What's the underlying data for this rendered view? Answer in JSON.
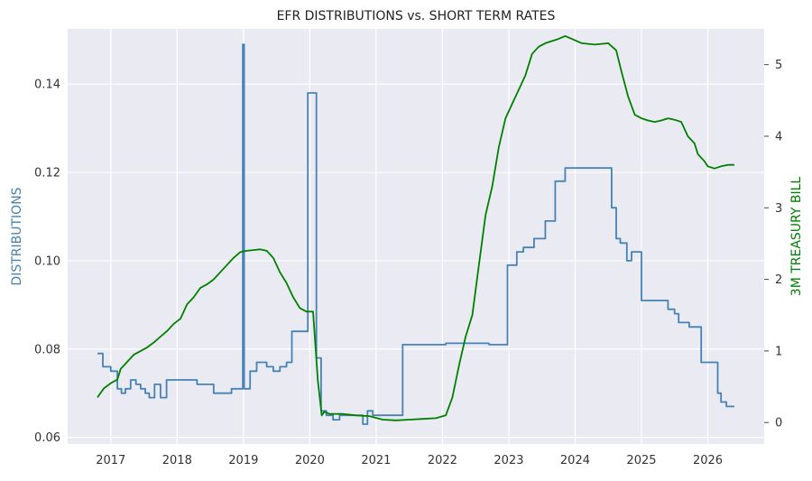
{
  "chart_data": {
    "type": "line",
    "title": "EFR DISTRIBUTIONS vs. SHORT TERM RATES",
    "xlabel": "",
    "ylabel_left": "DISTRIBUTIONS",
    "ylabel_right": "3M TREASURY BILL",
    "x_ticks": [
      "2017",
      "2018",
      "2019",
      "2020",
      "2021",
      "2022",
      "2023",
      "2024",
      "2025",
      "2026"
    ],
    "y_left_ticks": [
      "0.06",
      "0.08",
      "0.10",
      "0.12",
      "0.14"
    ],
    "y_right_ticks": [
      "0",
      "1",
      "2",
      "3",
      "4",
      "5"
    ],
    "xlim": [
      2016.35,
      2026.85
    ],
    "ylim_left": [
      0.0585,
      0.1525
    ],
    "ylim_right": [
      -0.3,
      5.5
    ],
    "grid": true,
    "colors": {
      "background": "#eaeaf2",
      "grid": "#ffffff",
      "distributions": "#4682b4",
      "treasury": "#008000"
    },
    "series": [
      {
        "name": "DISTRIBUTIONS",
        "axis": "left",
        "drawstyle": "steps",
        "x": [
          2016.8,
          2016.88,
          2017.0,
          2017.1,
          2017.16,
          2017.22,
          2017.3,
          2017.38,
          2017.45,
          2017.52,
          2017.58,
          2017.66,
          2017.75,
          2017.84,
          2017.95,
          2018.3,
          2018.55,
          2018.82,
          2018.97,
          2018.99,
          2019.01,
          2019.1,
          2019.2,
          2019.35,
          2019.45,
          2019.55,
          2019.65,
          2019.73,
          2019.96,
          2019.97,
          2020.1,
          2020.17,
          2020.25,
          2020.35,
          2020.45,
          2020.8,
          2020.87,
          2020.95,
          2021.05,
          2021.4,
          2022.0,
          2022.05,
          2022.7,
          2022.98,
          2023.12,
          2023.22,
          2023.38,
          2023.55,
          2023.7,
          2023.85,
          2024.55,
          2024.62,
          2024.68,
          2024.78,
          2024.85,
          2025.0,
          2025.4,
          2025.5,
          2025.56,
          2025.72,
          2025.9,
          2026.15,
          2026.2,
          2026.28,
          2026.4
        ],
        "values": [
          0.079,
          0.076,
          0.075,
          0.071,
          0.07,
          0.071,
          0.073,
          0.072,
          0.071,
          0.07,
          0.069,
          0.072,
          0.069,
          0.073,
          0.073,
          0.072,
          0.07,
          0.071,
          0.071,
          0.149,
          0.071,
          0.075,
          0.077,
          0.076,
          0.075,
          0.076,
          0.077,
          0.084,
          0.084,
          0.138,
          0.078,
          0.066,
          0.065,
          0.064,
          0.065,
          0.063,
          0.066,
          0.065,
          0.065,
          0.081,
          0.081,
          0.0813,
          0.081,
          0.099,
          0.102,
          0.103,
          0.105,
          0.109,
          0.118,
          0.121,
          0.112,
          0.105,
          0.104,
          0.1,
          0.102,
          0.091,
          0.089,
          0.088,
          0.086,
          0.085,
          0.077,
          0.07,
          0.068,
          0.067,
          0.067
        ]
      },
      {
        "name": "3M TREASURY BILL",
        "axis": "right",
        "drawstyle": "line",
        "x": [
          2016.8,
          2016.85,
          2016.9,
          2017.0,
          2017.1,
          2017.15,
          2017.25,
          2017.35,
          2017.45,
          2017.55,
          2017.65,
          2017.75,
          2017.85,
          2017.95,
          2018.05,
          2018.15,
          2018.25,
          2018.35,
          2018.45,
          2018.55,
          2018.65,
          2018.75,
          2018.85,
          2018.95,
          2019.05,
          2019.15,
          2019.25,
          2019.35,
          2019.45,
          2019.55,
          2019.65,
          2019.75,
          2019.85,
          2019.95,
          2020.05,
          2020.12,
          2020.18,
          2020.22,
          2020.3,
          2020.5,
          2020.7,
          2020.9,
          2021.1,
          2021.3,
          2021.5,
          2021.7,
          2021.9,
          2022.05,
          2022.15,
          2022.25,
          2022.35,
          2022.45,
          2022.55,
          2022.65,
          2022.75,
          2022.85,
          2022.95,
          2023.05,
          2023.15,
          2023.25,
          2023.35,
          2023.45,
          2023.55,
          2023.65,
          2023.75,
          2023.85,
          2023.95,
          2024.1,
          2024.3,
          2024.5,
          2024.62,
          2024.7,
          2024.8,
          2024.9,
          2025.0,
          2025.1,
          2025.2,
          2025.3,
          2025.4,
          2025.5,
          2025.6,
          2025.7,
          2025.8,
          2025.85,
          2025.9,
          2025.95,
          2026.0,
          2026.1,
          2026.2,
          2026.3,
          2026.4
        ],
        "values": [
          0.35,
          0.42,
          0.48,
          0.55,
          0.6,
          0.75,
          0.85,
          0.95,
          1.0,
          1.05,
          1.12,
          1.2,
          1.28,
          1.38,
          1.45,
          1.65,
          1.75,
          1.88,
          1.93,
          2.0,
          2.1,
          2.2,
          2.3,
          2.38,
          2.4,
          2.41,
          2.42,
          2.4,
          2.3,
          2.1,
          1.95,
          1.75,
          1.6,
          1.55,
          1.55,
          0.6,
          0.1,
          0.15,
          0.12,
          0.12,
          0.1,
          0.09,
          0.04,
          0.03,
          0.04,
          0.05,
          0.06,
          0.1,
          0.35,
          0.8,
          1.2,
          1.5,
          2.2,
          2.9,
          3.3,
          3.85,
          4.25,
          4.45,
          4.65,
          4.85,
          5.15,
          5.25,
          5.3,
          5.33,
          5.36,
          5.4,
          5.36,
          5.3,
          5.28,
          5.3,
          5.2,
          4.9,
          4.55,
          4.3,
          4.25,
          4.22,
          4.2,
          4.22,
          4.25,
          4.23,
          4.2,
          4.0,
          3.9,
          3.75,
          3.7,
          3.65,
          3.58,
          3.55,
          3.58,
          3.6,
          3.6
        ]
      }
    ]
  }
}
